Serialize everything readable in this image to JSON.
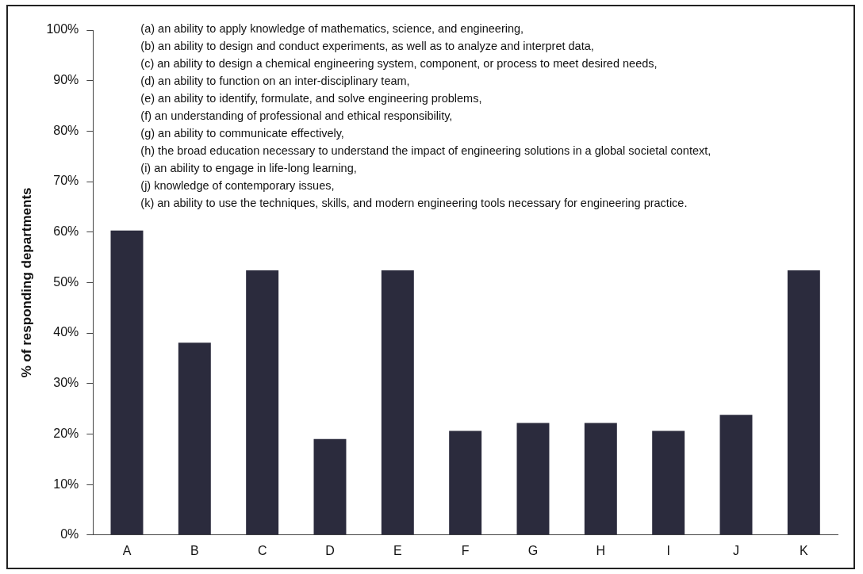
{
  "chart_data": {
    "type": "bar",
    "ylabel": "% of responding departments",
    "categories": [
      "A",
      "B",
      "C",
      "D",
      "E",
      "F",
      "G",
      "H",
      "I",
      "J",
      "K"
    ],
    "values": [
      60.3,
      38.1,
      52.4,
      19.0,
      52.4,
      20.6,
      22.2,
      22.2,
      20.6,
      23.8,
      52.4
    ],
    "color": "#2b2b3d",
    "ylim": [
      0,
      100
    ],
    "yticks": [
      {
        "value": 0,
        "label": "0%"
      },
      {
        "value": 10,
        "label": "10%"
      },
      {
        "value": 20,
        "label": "20%"
      },
      {
        "value": 30,
        "label": "30%"
      },
      {
        "value": 40,
        "label": "40%"
      },
      {
        "value": 50,
        "label": "50%"
      },
      {
        "value": 60,
        "label": "60%"
      },
      {
        "value": 70,
        "label": "70%"
      },
      {
        "value": 80,
        "label": "80%"
      },
      {
        "value": 90,
        "label": "90%"
      },
      {
        "value": 100,
        "label": "100%"
      }
    ],
    "grid": false,
    "legend": false,
    "annotations": [
      "(a) an ability to apply knowledge of mathematics, science, and engineering,",
      "(b) an ability to design and conduct experiments, as well as to analyze and interpret data,",
      "(c) an ability to design a chemical engineering system, component, or process to meet desired needs,",
      "(d) an ability to function on an inter-disciplinary team,",
      "(e) an ability to identify, formulate, and solve engineering problems,",
      "(f) an understanding of professional and ethical responsibility,",
      "(g) an ability to communicate effectively,",
      "(h) the broad education necessary to understand the impact of engineering solutions in a global societal context,",
      "(i) an ability to engage in life-long learning,",
      "(j) knowledge of contemporary issues,",
      "(k) an ability to use the techniques, skills, and modern engineering tools necessary for engineering practice."
    ]
  }
}
